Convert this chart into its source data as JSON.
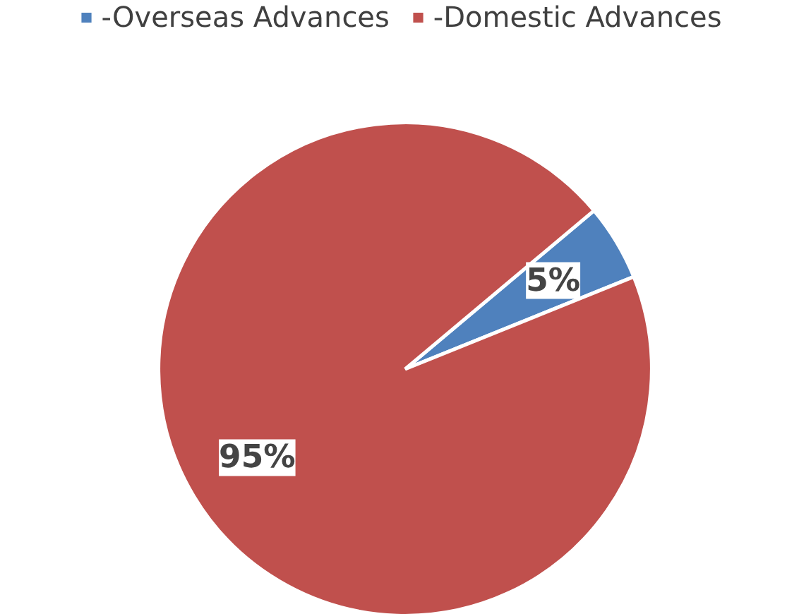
{
  "chart_data": {
    "type": "pie",
    "categories": [
      "-Overseas Advances",
      "-Domestic Advances"
    ],
    "values": [
      5,
      95
    ],
    "colors": [
      "#4f81bd",
      "#c0504d"
    ],
    "value_labels": [
      "5%",
      "95%"
    ],
    "legend": "top"
  }
}
